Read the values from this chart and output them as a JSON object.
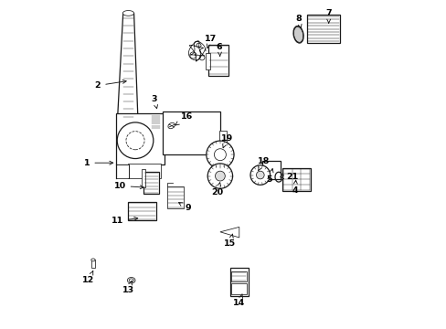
{
  "background_color": "#ffffff",
  "line_color": "#1a1a1a",
  "figsize": [
    4.89,
    3.6
  ],
  "dpi": 100,
  "label_data": [
    [
      1,
      0.175,
      0.505,
      0.085,
      0.505
    ],
    [
      2,
      0.215,
      0.755,
      0.118,
      0.74
    ],
    [
      3,
      0.3,
      0.66,
      0.29,
      0.7
    ],
    [
      4,
      0.72,
      0.455,
      0.718,
      0.42
    ],
    [
      5,
      0.65,
      0.49,
      0.64,
      0.455
    ],
    [
      6,
      0.49,
      0.82,
      0.488,
      0.858
    ],
    [
      7,
      0.82,
      0.92,
      0.82,
      0.96
    ],
    [
      8,
      0.738,
      0.905,
      0.728,
      0.942
    ],
    [
      9,
      0.355,
      0.39,
      0.392,
      0.368
    ],
    [
      10,
      0.268,
      0.43,
      0.185,
      0.435
    ],
    [
      11,
      0.25,
      0.338,
      0.178,
      0.328
    ],
    [
      12,
      0.108,
      0.185,
      0.09,
      0.148
    ],
    [
      13,
      0.225,
      0.155,
      0.21,
      0.118
    ],
    [
      14,
      0.56,
      0.115,
      0.548,
      0.078
    ],
    [
      15,
      0.53,
      0.298,
      0.52,
      0.26
    ],
    [
      16,
      0.352,
      0.618,
      0.388,
      0.645
    ],
    [
      17,
      0.448,
      0.845,
      0.46,
      0.882
    ],
    [
      18,
      0.605,
      0.48,
      0.622,
      0.51
    ],
    [
      19,
      0.498,
      0.548,
      0.51,
      0.58
    ],
    [
      20,
      0.49,
      0.448,
      0.482,
      0.415
    ],
    [
      21,
      0.67,
      0.462,
      0.71,
      0.462
    ]
  ]
}
